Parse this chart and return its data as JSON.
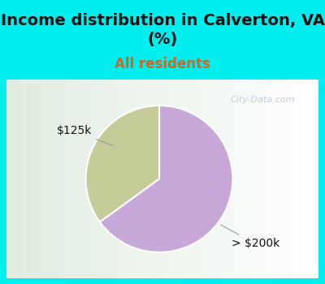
{
  "title": "Income distribution in Calverton, VA\n(%)",
  "subtitle": "All residents",
  "title_fontsize": 14,
  "subtitle_fontsize": 12,
  "title_color": "#111111",
  "subtitle_color": "#cc6622",
  "background_color_top": "#00eeee",
  "chart_bg_color": "#eef8f0",
  "slices": [
    0.35,
    0.65
  ],
  "slice_colors": [
    "#c5cc99",
    "#c8a8d8"
  ],
  "slice_labels": [
    "$125k",
    "> $200k"
  ],
  "label_color": "#111111",
  "label_fontsize": 10,
  "watermark": "City-Data.com",
  "watermark_color": "#aabbcc",
  "pie_startangle": 90
}
